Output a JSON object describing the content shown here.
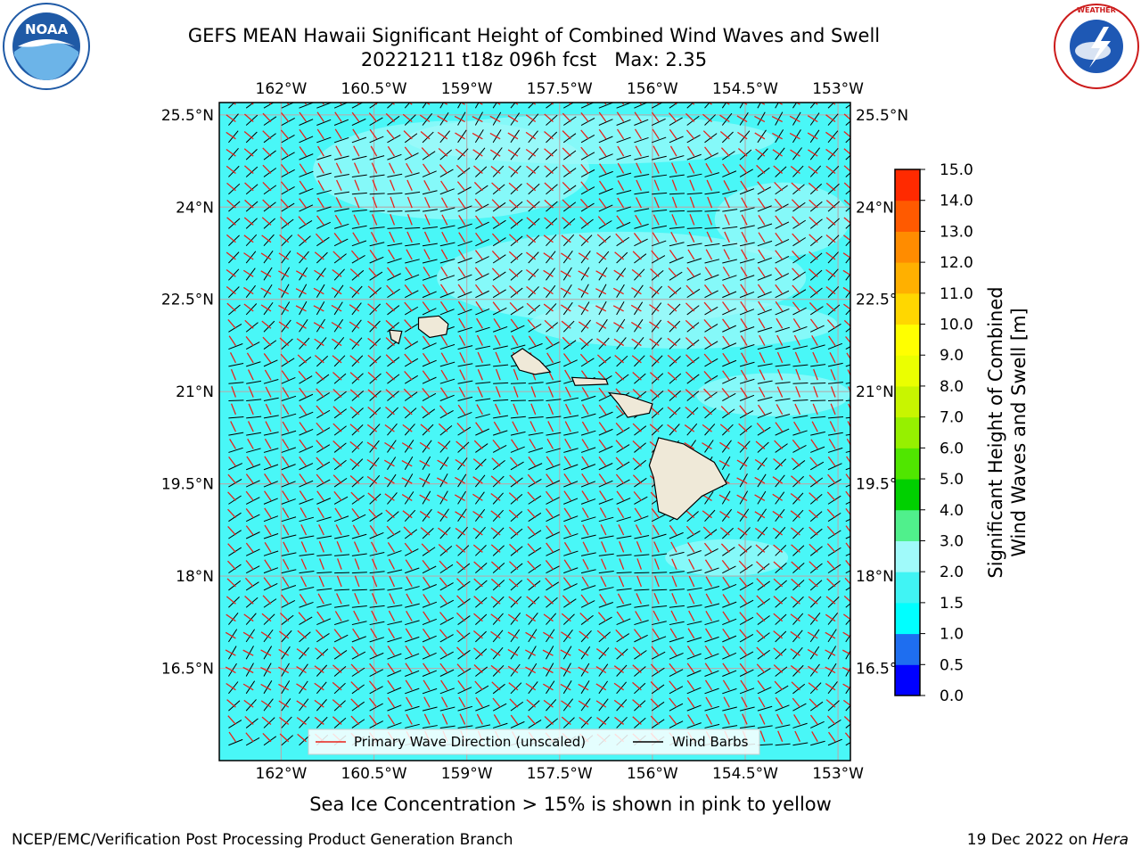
{
  "title": {
    "line1": "GEFS MEAN Hawaii Significant Height of Combined Wind Waves and Swell",
    "line2": "20221211 t18z 096h fcst   Max: 2.35"
  },
  "logos": {
    "left": {
      "icon": "noaa-logo",
      "label": "NOAA",
      "ring_text": "NATIONAL OCEANIC AND ATMOSPHERIC ADMINISTRATION · U.S. DEPARTMENT OF COMMERCE"
    },
    "right": {
      "icon": "nws-logo",
      "ring_text": "NATIONAL WEATHER SERVICE"
    }
  },
  "caption": "Sea Ice Concentration > 15% is shown in pink to yellow",
  "footer": {
    "left": "NCEP/EMC/Verification Post Processing Product Generation Branch",
    "right_date": "19 Dec 2022 on ",
    "right_host": "Hera"
  },
  "colors": {
    "ocean_fill": "#49f7f7",
    "barb": "#000000",
    "wave_arrow": "#e8231a",
    "land": "#efe9d8",
    "grid": "#b0b0b0"
  },
  "chart_data": {
    "type": "heatmap",
    "variable": "Significant Height of Combined Wind Waves and Swell",
    "units": "m",
    "max_value": 2.35,
    "x_ticks": [
      "162°W",
      "160.5°W",
      "159°W",
      "157.5°W",
      "156°W",
      "154.5°W",
      "153°W"
    ],
    "x_values": [
      -162,
      -160.5,
      -159,
      -157.5,
      -156,
      -154.5,
      -153
    ],
    "y_ticks": [
      "25.5°N",
      "24°N",
      "22.5°N",
      "21°N",
      "19.5°N",
      "18°N",
      "16.5°N"
    ],
    "y_values": [
      25.5,
      24,
      22.5,
      21,
      19.5,
      18,
      16.5
    ],
    "lon_range": [
      -163,
      -152.8
    ],
    "lat_range": [
      15.0,
      25.7
    ],
    "grid": true,
    "colorbar": {
      "label": "Significant Height of Combined Wind Waves and Swell [m]",
      "label_line1": "Significant Height of Combined",
      "label_line2": "Wind Waves and Swell [m]",
      "ticks": [
        "0.0",
        "0.5",
        "1.0",
        "1.5",
        "2.0",
        "3.0",
        "4.0",
        "5.0",
        "6.0",
        "7.0",
        "8.0",
        "9.0",
        "10.0",
        "11.0",
        "12.0",
        "13.0",
        "14.0",
        "15.0"
      ],
      "bin_colors": [
        "#0000ff",
        "#1e6ef0",
        "#00ffff",
        "#40f4f4",
        "#a0fafa",
        "#50f08c",
        "#00d000",
        "#50e600",
        "#96f000",
        "#c8f500",
        "#ebff00",
        "#ffff00",
        "#ffd700",
        "#ffb000",
        "#ff8c00",
        "#ff5a00",
        "#ff2a00"
      ]
    },
    "legend": {
      "placement": "bottom-center",
      "entries": [
        {
          "label": "Primary Wave Direction (unscaled)",
          "color": "#e8231a"
        },
        {
          "label": "Wind Barbs",
          "color": "#000000"
        }
      ]
    }
  }
}
